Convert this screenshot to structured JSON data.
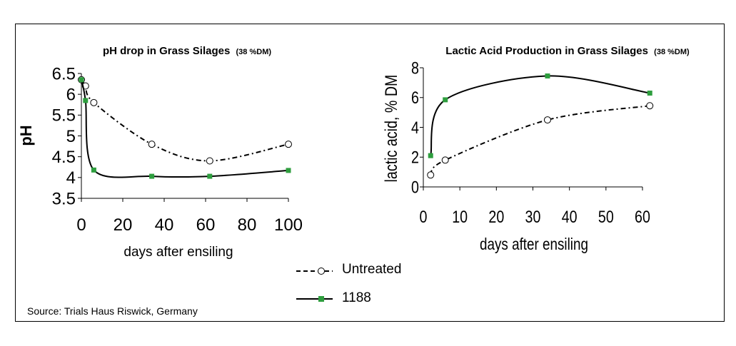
{
  "chart_data": [
    {
      "type": "line",
      "title": "pH drop in Grass Silages",
      "title_suffix": "(38 %DM)",
      "xlabel": "days after ensiling",
      "ylabel": "pH",
      "xlim": [
        0,
        100
      ],
      "ylim": [
        3.5,
        6.5
      ],
      "xticks": [
        0,
        20,
        40,
        60,
        80,
        100
      ],
      "yticks": [
        3.5,
        4,
        4.5,
        5,
        5.5,
        6,
        6.5
      ],
      "grid": false,
      "series": [
        {
          "name": "Untreated",
          "style": "dashed",
          "marker": "open-circle",
          "color": "#000000",
          "x": [
            0,
            2,
            6,
            34,
            62,
            100
          ],
          "y": [
            6.35,
            6.2,
            5.8,
            4.8,
            4.4,
            4.8
          ]
        },
        {
          "name": "1188",
          "style": "solid",
          "marker": "square",
          "color": "#000000",
          "marker_color": "#2e9e3e",
          "x": [
            0,
            2,
            6,
            34,
            62,
            100
          ],
          "y": [
            6.35,
            5.85,
            4.18,
            4.03,
            4.03,
            4.17
          ]
        }
      ]
    },
    {
      "type": "line",
      "title": "Lactic Acid Production in Grass Silages",
      "title_suffix": "(38 %DM)",
      "xlabel": "days after ensiling",
      "ylabel": "lactic acid, % DM",
      "xlim": [
        0,
        60
      ],
      "ylim": [
        0,
        8
      ],
      "xticks": [
        0,
        10,
        20,
        30,
        40,
        50,
        60
      ],
      "yticks": [
        0,
        2,
        4,
        6,
        8
      ],
      "grid": false,
      "series": [
        {
          "name": "Untreated",
          "style": "dashed",
          "marker": "open-circle",
          "color": "#000000",
          "x": [
            2,
            6,
            34,
            62
          ],
          "y": [
            0.8,
            1.8,
            4.5,
            5.45
          ]
        },
        {
          "name": "1188",
          "style": "solid",
          "marker": "square",
          "color": "#000000",
          "marker_color": "#2e9e3e",
          "x": [
            2,
            6,
            34,
            62
          ],
          "y": [
            2.1,
            5.85,
            7.45,
            6.3
          ]
        }
      ]
    }
  ],
  "legend": {
    "placement": "bottom-center",
    "items": [
      {
        "label": "Untreated",
        "style": "dashed",
        "marker": "open-circle"
      },
      {
        "label": "1188",
        "style": "solid",
        "marker": "square"
      }
    ]
  },
  "source_text": "Source:  Trials Haus Riswick, Germany"
}
